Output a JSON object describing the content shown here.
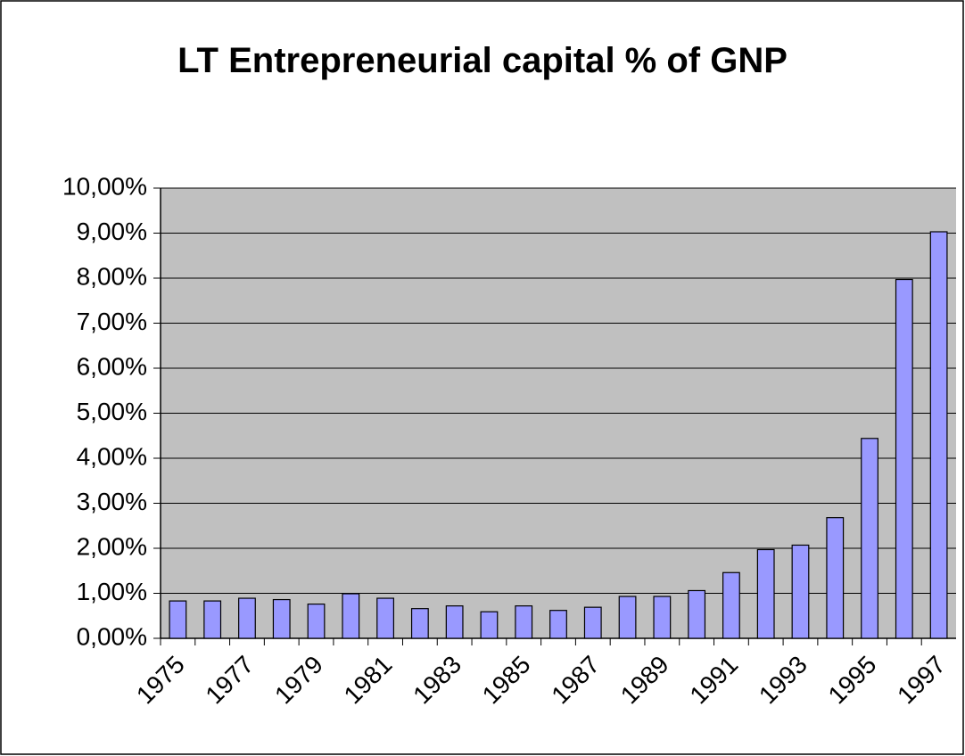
{
  "chart_data": {
    "type": "bar",
    "title": "LT Entrepreneurial capital % of GNP",
    "categories": [
      "1975",
      null,
      "1977",
      null,
      "1979",
      null,
      "1981",
      null,
      "1983",
      null,
      "1985",
      null,
      "1987",
      null,
      "1989",
      null,
      "1991",
      null,
      "1993",
      null,
      "1995",
      null,
      "1997"
    ],
    "values": [
      0.83,
      0.83,
      0.89,
      0.86,
      0.76,
      0.99,
      0.89,
      0.66,
      0.72,
      0.59,
      0.72,
      0.62,
      0.69,
      0.93,
      0.93,
      1.06,
      1.46,
      1.97,
      2.07,
      2.68,
      4.44,
      7.97,
      9.03
    ],
    "color": "#9999ff",
    "ylim": [
      0,
      10
    ],
    "yticks": [
      {
        "value": 0,
        "label": "0,00%"
      },
      {
        "value": 1,
        "label": "1,00%"
      },
      {
        "value": 2,
        "label": "2,00%"
      },
      {
        "value": 3,
        "label": "3,00%"
      },
      {
        "value": 4,
        "label": "4,00%"
      },
      {
        "value": 5,
        "label": "5,00%"
      },
      {
        "value": 6,
        "label": "6,00%"
      },
      {
        "value": 7,
        "label": "7,00%"
      },
      {
        "value": 8,
        "label": "8,00%"
      },
      {
        "value": 9,
        "label": "9,00%"
      },
      {
        "value": 10,
        "label": "10,00%"
      }
    ],
    "grid": true
  }
}
